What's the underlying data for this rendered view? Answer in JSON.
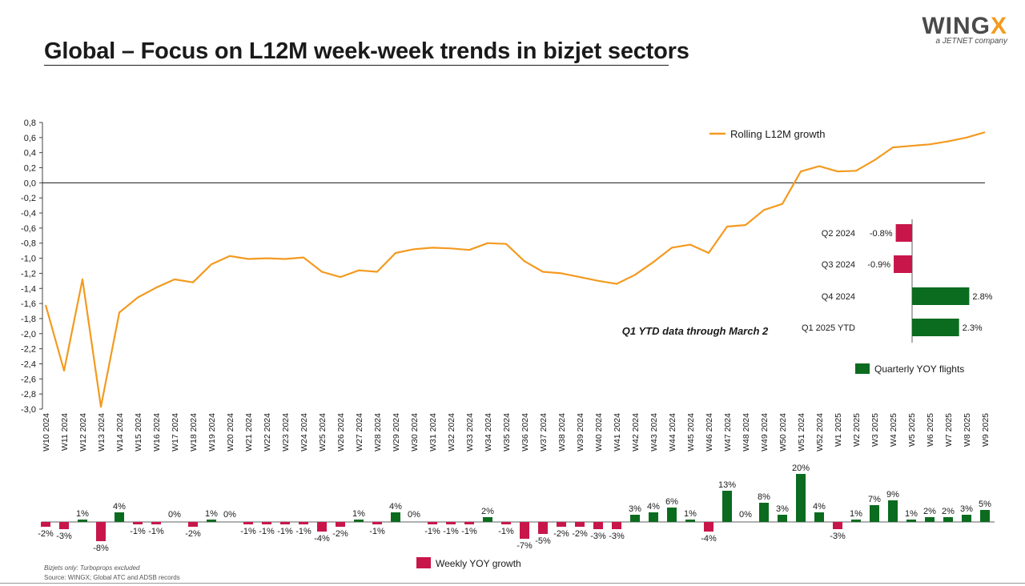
{
  "title": "Global – Focus on L12M week-week trends in bizjet sectors",
  "logo": {
    "word_main": "WING",
    "word_accent": "X",
    "sub": "a JETNET company"
  },
  "footnote": "Bizjets only: Turboprops excluded",
  "source": "Source: WINGX; Global ATC and ADSB records",
  "annotation": "Q1 YTD data through March 2",
  "colors": {
    "line": "#f39a1f",
    "positive": "#0b6b1f",
    "negative": "#c8164b",
    "axis": "#404040"
  },
  "chart_data": [
    {
      "type": "line",
      "series": [
        {
          "name": "Rolling L12M growth",
          "values": [
            -1.62,
            -2.49,
            -1.28,
            -2.97,
            -1.72,
            -1.52,
            -1.39,
            -1.28,
            -1.32,
            -1.08,
            -0.97,
            -1.01,
            -1.0,
            -1.01,
            -0.99,
            -1.18,
            -1.25,
            -1.16,
            -1.18,
            -0.93,
            -0.88,
            -0.86,
            -0.87,
            -0.89,
            -0.8,
            -0.81,
            -1.04,
            -1.18,
            -1.2,
            -1.25,
            -1.3,
            -1.34,
            -1.22,
            -1.05,
            -0.86,
            -0.82,
            -0.93,
            -0.58,
            -0.56,
            -0.36,
            -0.28,
            0.15,
            0.22,
            0.15,
            0.16,
            0.3,
            0.47,
            0.49,
            0.51,
            0.55,
            0.6,
            0.67
          ]
        }
      ],
      "categories": [
        "W10 2024",
        "W11 2024",
        "W12 2024",
        "W13 2024",
        "W14 2024",
        "W15 2024",
        "W16 2024",
        "W17 2024",
        "W18 2024",
        "W19 2024",
        "W20 2024",
        "W21 2024",
        "W22 2024",
        "W23 2024",
        "W24 2024",
        "W25 2024",
        "W26 2024",
        "W27 2024",
        "W28 2024",
        "W29 2024",
        "W30 2024",
        "W31 2024",
        "W32 2024",
        "W33 2024",
        "W34 2024",
        "W35 2024",
        "W36 2024",
        "W37 2024",
        "W38 2024",
        "W39 2024",
        "W40 2024",
        "W41 2024",
        "W42 2024",
        "W43 2024",
        "W44 2024",
        "W45 2024",
        "W46 2024",
        "W47 2024",
        "W48 2024",
        "W49 2024",
        "W50 2024",
        "W51 2024",
        "W52 2024",
        "W1 2025",
        "W2 2025",
        "W3 2025",
        "W4 2025",
        "W5 2025",
        "W6 2025",
        "W7 2025",
        "W8 2025",
        "W9 2025"
      ],
      "ylim": [
        -3.0,
        0.8
      ],
      "yticks": [
        "-3,0",
        "-2,8",
        "-2,6",
        "-2,4",
        "-2,2",
        "-2,0",
        "-1,8",
        "-1,6",
        "-1,4",
        "-1,2",
        "-1,0",
        "-0,8",
        "-0,6",
        "-0,4",
        "-0,2",
        "0,0",
        "0,2",
        "0,4",
        "0,6",
        "0,8"
      ],
      "legend": "top-right"
    },
    {
      "type": "bar",
      "series": [
        {
          "name": "Weekly YOY growth",
          "values": [
            -2,
            -3,
            1,
            -8,
            4,
            -1,
            -1,
            0,
            -2,
            1,
            0,
            -1,
            -1,
            -1,
            -1,
            -4,
            -2,
            1,
            -1,
            4,
            0,
            -1,
            -1,
            -1,
            2,
            -1,
            -7,
            -5,
            -2,
            -2,
            -3,
            -3,
            3,
            4,
            6,
            1,
            -4,
            13,
            0,
            8,
            3,
            20,
            4,
            -3,
            1,
            7,
            9,
            1,
            2,
            2,
            3,
            5
          ]
        }
      ],
      "labels": [
        "-2%",
        "-3%",
        "1%",
        "-8%",
        "4%",
        "-1%",
        "-1%",
        "0%",
        "-2%",
        "1%",
        "0%",
        "-1%",
        "-1%",
        "-1%",
        "-1%",
        "-4%",
        "-2%",
        "1%",
        "-1%",
        "4%",
        "0%",
        "-1%",
        "-1%",
        "-1%",
        "2%",
        "-1%",
        "-7%",
        "-5%",
        "-2%",
        "-2%",
        "-3%",
        "-3%",
        "3%",
        "4%",
        "6%",
        "1%",
        "-4%",
        "13%",
        "0%",
        "8%",
        "3%",
        "20%",
        "4%",
        "-3%",
        "1%",
        "7%",
        "9%",
        "1%",
        "2%",
        "2%",
        "3%",
        "5%"
      ],
      "legend": "bottom"
    },
    {
      "type": "bar",
      "orientation": "horizontal",
      "categories": [
        "Q2 2024",
        "Q3 2024",
        "Q4 2024",
        "Q1 2025 YTD"
      ],
      "values": [
        -0.8,
        -0.9,
        2.8,
        2.3
      ],
      "labels": [
        "-0.8%",
        "-0.9%",
        "2.8%",
        "2.3%"
      ],
      "series_name": "Quarterly YOY flights",
      "legend": "bottom-right"
    }
  ]
}
